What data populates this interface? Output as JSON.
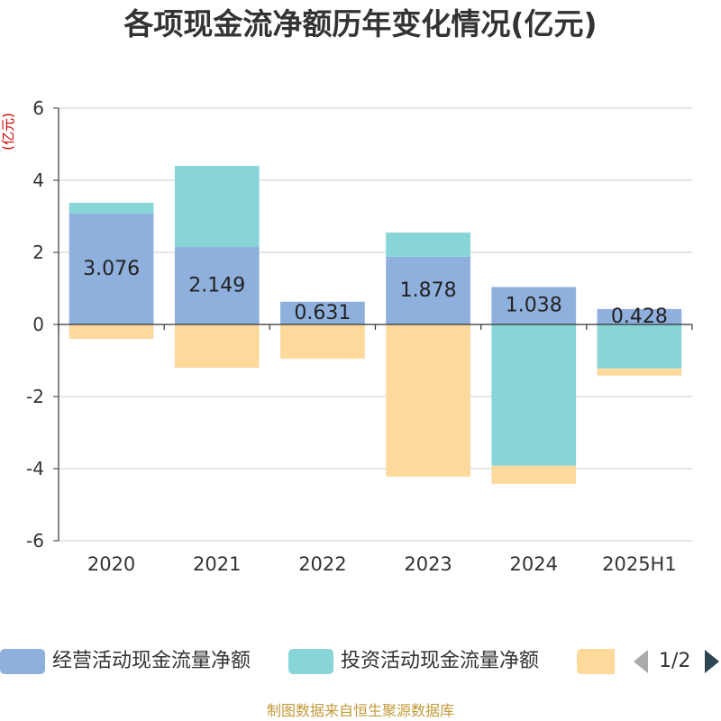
{
  "chart_data": {
    "type": "bar",
    "stacked": true,
    "title": "各项现金流净额历年变化情况(亿元)",
    "ylabel": "(亿元)",
    "categories": [
      "2020",
      "2021",
      "2022",
      "2023",
      "2024",
      "2025H1"
    ],
    "ylim": [
      -6,
      6
    ],
    "yticks": [
      6,
      4,
      2,
      0,
      -2,
      -4,
      -6
    ],
    "grid": true,
    "legend_position": "bottom",
    "series": [
      {
        "name": "经营活动现金流量净额",
        "color": "#8fb0dd",
        "data_labels": true,
        "values": [
          3.076,
          2.149,
          0.631,
          1.878,
          1.038,
          0.428
        ]
      },
      {
        "name": "投资活动现金流量净额",
        "color": "#88d5d8",
        "data_labels": false,
        "values": [
          0.3,
          2.25,
          0,
          0.67,
          -3.92,
          -1.22
        ]
      },
      {
        "color": "#fdd99b",
        "data_labels": false,
        "values": [
          -0.4,
          -1.2,
          -0.95,
          -4.22,
          -0.5,
          -0.2
        ]
      }
    ]
  },
  "legend": {
    "page_indicator": "1/2"
  },
  "source_note": "制图数据来自恒生聚源数据库",
  "colors": {
    "title": "#333333",
    "axis": "#333333",
    "grid": "#cccccc",
    "ylabel": "#cc0000",
    "source_note": "#c29a3a",
    "pager_inactive": "#aaaaaa",
    "pager_active": "#2f4554"
  }
}
